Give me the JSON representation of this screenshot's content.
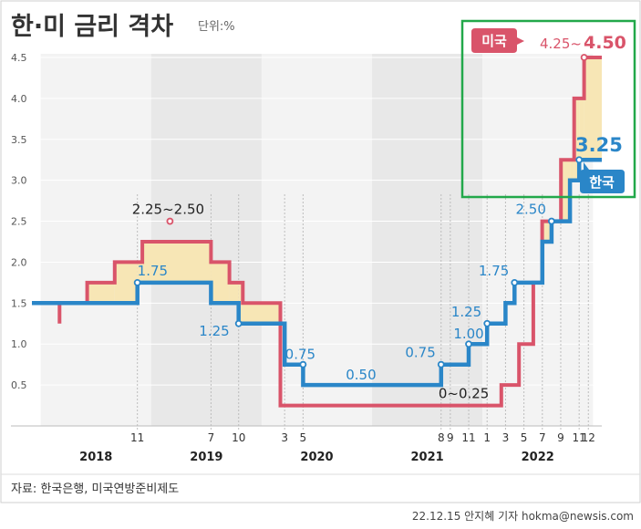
{
  "chart_data": {
    "type": "line",
    "title": "한·미 금리 격차",
    "unit": "단위:%",
    "y_ticks": [
      "0.5",
      "1.0",
      "1.5",
      "2.0",
      "2.5",
      "3.0",
      "3.5",
      "4.0",
      "4.5"
    ],
    "ylim": [
      0,
      4.5
    ],
    "x_month_ticks": [
      {
        "label": "11",
        "month": 2018.875
      },
      {
        "label": "7",
        "month": 2019.5417
      },
      {
        "label": "10",
        "month": 2019.7917
      },
      {
        "label": "3",
        "month": 2020.2083
      },
      {
        "label": "5",
        "month": 2020.375
      },
      {
        "label": "8",
        "month": 2021.625
      },
      {
        "label": "9",
        "month": 2021.7083
      },
      {
        "label": "11",
        "month": 2021.875
      },
      {
        "label": "1",
        "month": 2022.0417
      },
      {
        "label": "3",
        "month": 2022.2083
      },
      {
        "label": "5",
        "month": 2022.375
      },
      {
        "label": "7",
        "month": 2022.5417
      },
      {
        "label": "9",
        "month": 2022.7083
      },
      {
        "label": "11",
        "month": 2022.875
      },
      {
        "label": "12",
        "month": 2022.9583
      }
    ],
    "x_years": [
      "2018",
      "2019",
      "2020",
      "2021",
      "2022"
    ],
    "series": [
      {
        "name": "미국",
        "color": "#d9546a",
        "points": [
          [
            2018.17,
            1.25
          ],
          [
            2018.17,
            1.5
          ],
          [
            2018.42,
            1.5
          ],
          [
            2018.42,
            1.75
          ],
          [
            2018.67,
            1.75
          ],
          [
            2018.67,
            2.0
          ],
          [
            2018.92,
            2.0
          ],
          [
            2018.92,
            2.25
          ],
          [
            2019.5417,
            2.25
          ],
          [
            2019.5417,
            2.0
          ],
          [
            2019.7083,
            2.0
          ],
          [
            2019.7083,
            1.75
          ],
          [
            2019.83,
            1.75
          ],
          [
            2019.83,
            1.5
          ],
          [
            2020.17,
            1.5
          ],
          [
            2020.17,
            0.25
          ],
          [
            2022.17,
            0.25
          ],
          [
            2022.17,
            0.5
          ],
          [
            2022.33,
            0.5
          ],
          [
            2022.33,
            1.0
          ],
          [
            2022.46,
            1.0
          ],
          [
            2022.46,
            1.75
          ],
          [
            2022.54,
            1.75
          ],
          [
            2022.54,
            2.5
          ],
          [
            2022.71,
            2.5
          ],
          [
            2022.71,
            3.25
          ],
          [
            2022.83,
            3.25
          ],
          [
            2022.83,
            4.0
          ],
          [
            2022.92,
            4.0
          ],
          [
            2022.92,
            4.5
          ],
          [
            2023.08,
            4.5
          ]
        ]
      },
      {
        "name": "한국",
        "color": "#2a86c8",
        "points": [
          [
            2017.92,
            1.5
          ],
          [
            2018.875,
            1.5
          ],
          [
            2018.875,
            1.75
          ],
          [
            2019.5417,
            1.75
          ],
          [
            2019.5417,
            1.5
          ],
          [
            2019.7917,
            1.5
          ],
          [
            2019.7917,
            1.25
          ],
          [
            2020.2083,
            1.25
          ],
          [
            2020.2083,
            0.75
          ],
          [
            2020.375,
            0.75
          ],
          [
            2020.375,
            0.5
          ],
          [
            2021.625,
            0.5
          ],
          [
            2021.625,
            0.75
          ],
          [
            2021.875,
            0.75
          ],
          [
            2021.875,
            1.0
          ],
          [
            2022.0417,
            1.0
          ],
          [
            2022.0417,
            1.25
          ],
          [
            2022.2083,
            1.25
          ],
          [
            2022.2083,
            1.5
          ],
          [
            2022.29,
            1.5
          ],
          [
            2022.29,
            1.75
          ],
          [
            2022.5417,
            1.75
          ],
          [
            2022.5417,
            2.25
          ],
          [
            2022.625,
            2.25
          ],
          [
            2022.625,
            2.5
          ],
          [
            2022.7917,
            2.5
          ],
          [
            2022.7917,
            3.0
          ],
          [
            2022.875,
            3.0
          ],
          [
            2022.875,
            3.25
          ],
          [
            2023.08,
            3.25
          ]
        ]
      }
    ],
    "annotations": [
      {
        "text": "2.25~2.50",
        "x": 2019.17,
        "y": 2.5,
        "style": "dark"
      },
      {
        "text": "1.75",
        "x": 2018.875,
        "y": 1.75,
        "style": "blue"
      },
      {
        "text": "1.25",
        "x": 2019.7917,
        "y": 1.25,
        "style": "blue"
      },
      {
        "text": "0.75",
        "x": 2020.375,
        "y": 0.75,
        "style": "blue"
      },
      {
        "text": "0.50",
        "x": 2020.9,
        "y": 0.5,
        "style": "blue"
      },
      {
        "text": "0~0.25",
        "x": 2021.83,
        "y": 0.25,
        "style": "dark"
      },
      {
        "text": "0.75",
        "x": 2021.625,
        "y": 0.75,
        "style": "blue"
      },
      {
        "text": "1.00",
        "x": 2021.875,
        "y": 1.0,
        "style": "blue"
      },
      {
        "text": "1.25",
        "x": 2022.0417,
        "y": 1.25,
        "style": "blue"
      },
      {
        "text": "1.75",
        "x": 2022.29,
        "y": 1.75,
        "style": "blue"
      },
      {
        "text": "2.50",
        "x": 2022.625,
        "y": 2.5,
        "style": "blue"
      }
    ],
    "us_tag": "미국",
    "us_range_a": "4.25~",
    "us_range_b": "4.50",
    "kr_tag": "한국",
    "kr_value": "3.25"
  },
  "source": "자료: 한국은행, 미국연방준비제도",
  "credit": "22.12.15 안지혜 기자  hokma@newsis.com"
}
